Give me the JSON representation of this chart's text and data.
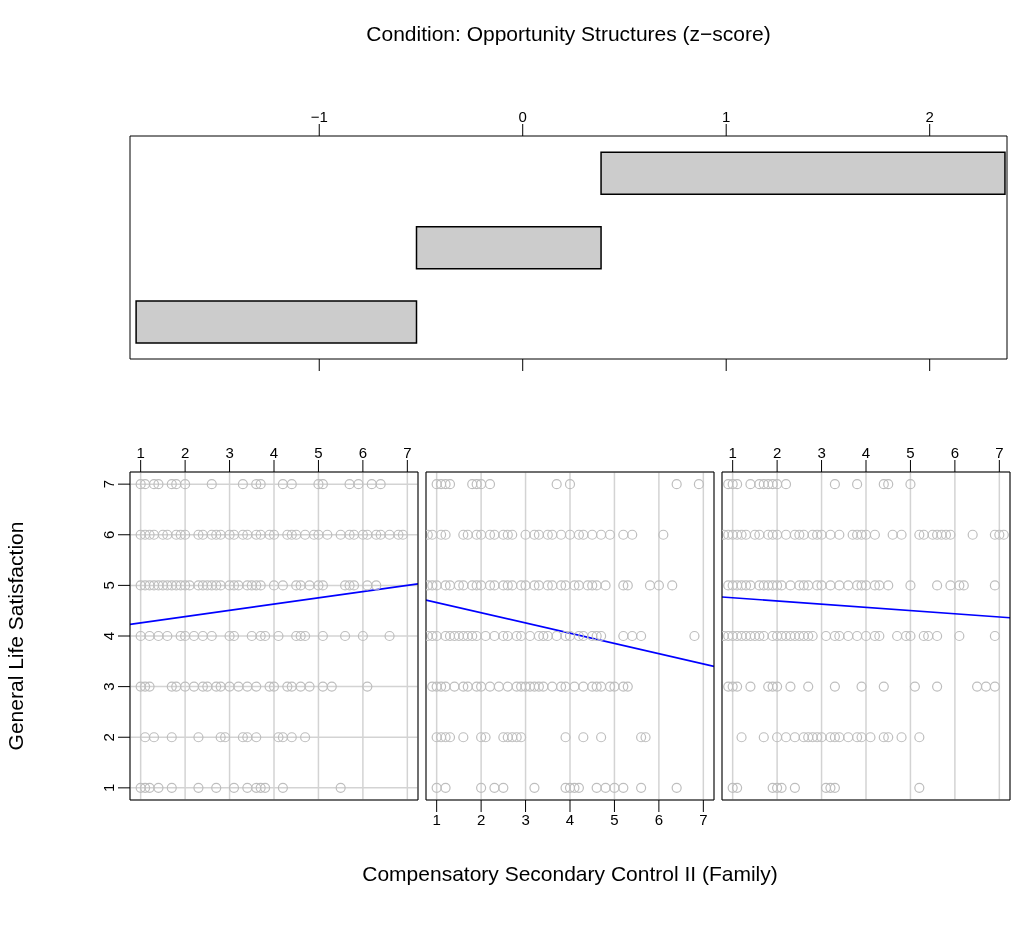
{
  "chart_data": [
    {
      "type": "bar",
      "orientation": "horizontal",
      "title": "Condition: Opportunity Structures (z−score)",
      "categories": [
        null,
        null,
        null
      ],
      "base": [
        0.385,
        -0.522,
        -1.9
      ],
      "values": [
        1.985,
        0.907,
        1.378
      ],
      "color": "#cccccc",
      "xlim": [
        -1.93,
        2.38
      ],
      "xticks": [
        -1,
        0,
        1,
        2
      ],
      "tick_labels": "x"
    },
    {
      "type": "scatter",
      "ylabel": "General Life Satisfaction",
      "xlim": [
        0.76,
        7.24
      ],
      "xticks": [
        1,
        2,
        3,
        4,
        5,
        6,
        7
      ],
      "ylim": [
        0.76,
        7.24
      ],
      "yticks": [
        1,
        2,
        3,
        4,
        5,
        6,
        7
      ],
      "grid": true,
      "marker": "circle",
      "series": [
        {
          "color": "#bebebe",
          "x": [
            1.0,
            1.1,
            1.3,
            1.4,
            1.7,
            1.8,
            2.0,
            2.6,
            3.3,
            3.6,
            3.7,
            4.2,
            4.4,
            5.0,
            5.1,
            5.7,
            5.9,
            6.2,
            6.4
          ],
          "values": [
            7,
            7,
            7,
            7,
            7,
            7,
            7,
            7,
            7,
            7,
            7,
            7,
            7,
            7,
            7,
            7,
            7,
            7,
            7
          ]
        },
        {
          "color": "#bebebe",
          "x": [
            1.0,
            1.1,
            1.2,
            1.3,
            1.5,
            1.6,
            1.8,
            1.9,
            2.0,
            2.3,
            2.4,
            2.6,
            2.7,
            2.8,
            3.0,
            3.1,
            3.3,
            3.4,
            3.6,
            3.7,
            3.9,
            4.0,
            4.3,
            4.4,
            4.5,
            4.7,
            4.9,
            5.0,
            5.2,
            5.5,
            5.7,
            5.8,
            6.0,
            6.1,
            6.3,
            6.4,
            6.6,
            6.8,
            6.9
          ],
          "values": [
            6,
            6,
            6,
            6,
            6,
            6,
            6,
            6,
            6,
            6,
            6,
            6,
            6,
            6,
            6,
            6,
            6,
            6,
            6,
            6,
            6,
            6,
            6,
            6,
            6,
            6,
            6,
            6,
            6,
            6,
            6,
            6,
            6,
            6,
            6,
            6,
            6,
            6,
            6
          ]
        },
        {
          "color": "#bebebe",
          "x": [
            1.0,
            1.1,
            1.2,
            1.3,
            1.4,
            1.5,
            1.6,
            1.7,
            1.8,
            1.9,
            2.0,
            2.1,
            2.3,
            2.4,
            2.5,
            2.6,
            2.7,
            2.8,
            3.0,
            3.1,
            3.2,
            3.4,
            3.5,
            3.6,
            3.7,
            4.0,
            4.2,
            4.5,
            4.6,
            4.8,
            5.0,
            5.1,
            5.6,
            5.7,
            5.8,
            6.1,
            6.3
          ],
          "values": [
            5,
            5,
            5,
            5,
            5,
            5,
            5,
            5,
            5,
            5,
            5,
            5,
            5,
            5,
            5,
            5,
            5,
            5,
            5,
            5,
            5,
            5,
            5,
            5,
            5,
            5,
            5,
            5,
            5,
            5,
            5,
            5,
            5,
            5,
            5,
            5,
            5
          ]
        },
        {
          "color": "#bebebe",
          "x": [
            1.0,
            1.2,
            1.4,
            1.6,
            1.9,
            2.0,
            2.2,
            2.4,
            2.6,
            3.0,
            3.1,
            3.5,
            3.7,
            3.8,
            4.1,
            4.5,
            4.6,
            4.7,
            5.1,
            5.6,
            6.0,
            6.6
          ],
          "values": [
            4,
            4,
            4,
            4,
            4,
            4,
            4,
            4,
            4,
            4,
            4,
            4,
            4,
            4,
            4,
            4,
            4,
            4,
            4,
            4,
            4,
            4
          ]
        },
        {
          "color": "#bebebe",
          "x": [
            1.0,
            1.1,
            1.2,
            1.7,
            1.8,
            2.0,
            2.2,
            2.4,
            2.5,
            2.7,
            2.8,
            3.0,
            3.2,
            3.4,
            3.6,
            3.9,
            4.0,
            4.3,
            4.4,
            4.6,
            4.8,
            5.1,
            5.3,
            6.1
          ],
          "values": [
            3,
            3,
            3,
            3,
            3,
            3,
            3,
            3,
            3,
            3,
            3,
            3,
            3,
            3,
            3,
            3,
            3,
            3,
            3,
            3,
            3,
            3,
            3,
            3
          ]
        },
        {
          "color": "#bebebe",
          "x": [
            1.1,
            1.3,
            1.7,
            2.3,
            2.8,
            2.9,
            3.3,
            3.4,
            3.6,
            4.1,
            4.2,
            4.4,
            4.7
          ],
          "values": [
            2,
            2,
            2,
            2,
            2,
            2,
            2,
            2,
            2,
            2,
            2,
            2,
            2
          ]
        },
        {
          "color": "#bebebe",
          "x": [
            1.0,
            1.1,
            1.2,
            1.4,
            1.7,
            2.3,
            2.7,
            3.1,
            3.4,
            3.6,
            3.7,
            3.8,
            4.2,
            5.5
          ],
          "values": [
            1,
            1,
            1,
            1,
            1,
            1,
            1,
            1,
            1,
            1,
            1,
            1,
            1,
            1
          ]
        },
        {
          "type": "line",
          "color": "#0000ff",
          "x": [
            0.76,
            7.24
          ],
          "values": [
            4.23,
            5.03
          ],
          "marker": "none"
        }
      ]
    },
    {
      "type": "scatter",
      "xlabel": "Compensatory Secondary Control II (Family)",
      "xlim": [
        0.76,
        7.24
      ],
      "xticks": [
        1,
        2,
        3,
        4,
        5,
        6,
        7
      ],
      "ylim": [
        0.76,
        7.24
      ],
      "yticks": [
        1,
        2,
        3,
        4,
        5,
        6,
        7
      ],
      "grid": true,
      "marker": "circle",
      "tick_labels": "x",
      "series": [
        {
          "color": "#bebebe",
          "x": [
            1.0,
            1.1,
            1.2,
            1.3,
            1.8,
            1.9,
            2.0,
            2.2,
            3.7,
            4.0,
            6.4,
            6.9
          ],
          "values": [
            7,
            7,
            7,
            7,
            7,
            7,
            7,
            7,
            7,
            7,
            7,
            7
          ]
        },
        {
          "color": "#bebebe",
          "x": [
            0.8,
            0.9,
            1.1,
            1.2,
            1.6,
            1.7,
            1.9,
            2.0,
            2.2,
            2.3,
            2.5,
            2.6,
            2.7,
            3.0,
            3.2,
            3.3,
            3.5,
            3.6,
            3.8,
            4.0,
            4.2,
            4.3,
            4.5,
            4.7,
            4.9,
            5.2,
            5.4,
            6.1
          ],
          "values": [
            6,
            6,
            6,
            6,
            6,
            6,
            6,
            6,
            6,
            6,
            6,
            6,
            6,
            6,
            6,
            6,
            6,
            6,
            6,
            6,
            6,
            6,
            6,
            6,
            6,
            6,
            6,
            6
          ]
        },
        {
          "color": "#bebebe",
          "x": [
            0.8,
            0.9,
            1.0,
            1.2,
            1.3,
            1.5,
            1.6,
            1.8,
            1.9,
            2.0,
            2.2,
            2.3,
            2.5,
            2.6,
            2.7,
            2.9,
            3.0,
            3.2,
            3.3,
            3.5,
            3.6,
            3.8,
            3.9,
            4.1,
            4.2,
            4.4,
            4.5,
            4.6,
            4.8,
            5.2,
            5.3,
            5.8,
            6.0,
            6.3
          ],
          "values": [
            5,
            5,
            5,
            5,
            5,
            5,
            5,
            5,
            5,
            5,
            5,
            5,
            5,
            5,
            5,
            5,
            5,
            5,
            5,
            5,
            5,
            5,
            5,
            5,
            5,
            5,
            5,
            5,
            5,
            5,
            5,
            5,
            5,
            5
          ]
        },
        {
          "color": "#bebebe",
          "x": [
            0.8,
            0.9,
            1.0,
            1.2,
            1.3,
            1.4,
            1.5,
            1.6,
            1.7,
            1.8,
            1.9,
            2.1,
            2.3,
            2.5,
            2.6,
            2.8,
            2.9,
            3.1,
            3.3,
            3.4,
            3.5,
            3.7,
            3.9,
            4.0,
            4.2,
            4.3,
            4.5,
            4.6,
            4.7,
            5.2,
            5.4,
            5.6,
            6.8
          ],
          "values": [
            4,
            4,
            4,
            4,
            4,
            4,
            4,
            4,
            4,
            4,
            4,
            4,
            4,
            4,
            4,
            4,
            4,
            4,
            4,
            4,
            4,
            4,
            4,
            4,
            4,
            4,
            4,
            4,
            4,
            4,
            4,
            4,
            4
          ]
        },
        {
          "color": "#bebebe",
          "x": [
            0.9,
            1.0,
            1.1,
            1.2,
            1.4,
            1.6,
            1.7,
            1.9,
            2.0,
            2.2,
            2.4,
            2.6,
            2.8,
            2.9,
            3.0,
            3.1,
            3.2,
            3.3,
            3.4,
            3.6,
            3.8,
            3.9,
            4.1,
            4.3,
            4.5,
            4.6,
            4.7,
            4.9,
            5.0,
            5.2,
            5.3
          ],
          "values": [
            3,
            3,
            3,
            3,
            3,
            3,
            3,
            3,
            3,
            3,
            3,
            3,
            3,
            3,
            3,
            3,
            3,
            3,
            3,
            3,
            3,
            3,
            3,
            3,
            3,
            3,
            3,
            3,
            3,
            3,
            3
          ]
        },
        {
          "color": "#bebebe",
          "x": [
            1.0,
            1.1,
            1.2,
            1.3,
            1.6,
            2.0,
            2.1,
            2.5,
            2.6,
            2.7,
            2.8,
            2.9,
            3.9,
            4.3,
            4.7,
            5.6,
            5.7
          ],
          "values": [
            2,
            2,
            2,
            2,
            2,
            2,
            2,
            2,
            2,
            2,
            2,
            2,
            2,
            2,
            2,
            2,
            2
          ]
        },
        {
          "color": "#bebebe",
          "x": [
            1.0,
            1.2,
            2.0,
            2.3,
            2.5,
            3.2,
            3.9,
            4.0,
            4.1,
            4.2,
            4.6,
            4.8,
            5.0,
            5.2,
            5.6,
            6.4
          ],
          "values": [
            1,
            1,
            1,
            1,
            1,
            1,
            1,
            1,
            1,
            1,
            1,
            1,
            1,
            1,
            1,
            1
          ]
        },
        {
          "type": "line",
          "color": "#0000ff",
          "x": [
            0.76,
            7.24
          ],
          "values": [
            4.71,
            3.4
          ],
          "marker": "none"
        }
      ]
    },
    {
      "type": "scatter",
      "xlim": [
        0.76,
        7.24
      ],
      "xticks": [
        1,
        2,
        3,
        4,
        5,
        6,
        7
      ],
      "ylim": [
        0.76,
        7.24
      ],
      "yticks": [
        1,
        2,
        3,
        4,
        5,
        6,
        7
      ],
      "grid": true,
      "marker": "circle",
      "tick_labels": "x",
      "series": [
        {
          "color": "#bebebe",
          "x": [
            0.9,
            1.0,
            1.1,
            1.4,
            1.6,
            1.7,
            1.8,
            1.9,
            2.0,
            2.2,
            3.3,
            3.8,
            4.4,
            4.5,
            5.0
          ],
          "values": [
            7,
            7,
            7,
            7,
            7,
            7,
            7,
            7,
            7,
            7,
            7,
            7,
            7,
            7,
            7
          ]
        },
        {
          "color": "#bebebe",
          "x": [
            0.8,
            0.9,
            1.0,
            1.1,
            1.2,
            1.3,
            1.5,
            1.6,
            1.8,
            1.9,
            2.0,
            2.2,
            2.4,
            2.5,
            2.6,
            2.8,
            2.9,
            3.0,
            3.2,
            3.4,
            3.7,
            3.8,
            3.9,
            4.0,
            4.2,
            4.6,
            4.8,
            5.2,
            5.3,
            5.5,
            5.6,
            5.7,
            5.8,
            5.9,
            6.4,
            6.9,
            7.0,
            7.1
          ],
          "values": [
            6,
            6,
            6,
            6,
            6,
            6,
            6,
            6,
            6,
            6,
            6,
            6,
            6,
            6,
            6,
            6,
            6,
            6,
            6,
            6,
            6,
            6,
            6,
            6,
            6,
            6,
            6,
            6,
            6,
            6,
            6,
            6,
            6,
            6,
            6,
            6,
            6,
            6
          ]
        },
        {
          "color": "#bebebe",
          "x": [
            0.9,
            1.0,
            1.1,
            1.2,
            1.3,
            1.4,
            1.6,
            1.7,
            1.8,
            1.9,
            2.0,
            2.1,
            2.3,
            2.5,
            2.6,
            2.7,
            2.9,
            3.0,
            3.2,
            3.4,
            3.6,
            3.8,
            3.9,
            4.0,
            4.2,
            4.3,
            4.5,
            5.0,
            5.6,
            5.9,
            6.1,
            6.2,
            6.9
          ],
          "values": [
            5,
            5,
            5,
            5,
            5,
            5,
            5,
            5,
            5,
            5,
            5,
            5,
            5,
            5,
            5,
            5,
            5,
            5,
            5,
            5,
            5,
            5,
            5,
            5,
            5,
            5,
            5,
            5,
            5,
            5,
            5,
            5,
            5
          ]
        },
        {
          "color": "#bebebe",
          "x": [
            0.8,
            0.9,
            1.0,
            1.1,
            1.2,
            1.3,
            1.4,
            1.5,
            1.6,
            1.7,
            1.9,
            2.0,
            2.1,
            2.2,
            2.3,
            2.4,
            2.5,
            2.6,
            2.7,
            2.8,
            3.1,
            3.3,
            3.4,
            3.6,
            3.8,
            4.0,
            4.2,
            4.3,
            4.7,
            4.9,
            5.0,
            5.3,
            5.4,
            5.6,
            6.1,
            6.9
          ],
          "values": [
            4,
            4,
            4,
            4,
            4,
            4,
            4,
            4,
            4,
            4,
            4,
            4,
            4,
            4,
            4,
            4,
            4,
            4,
            4,
            4,
            4,
            4,
            4,
            4,
            4,
            4,
            4,
            4,
            4,
            4,
            4,
            4,
            4,
            4,
            4,
            4
          ]
        },
        {
          "color": "#bebebe",
          "x": [
            0.9,
            1.0,
            1.1,
            1.4,
            1.8,
            1.9,
            2.0,
            2.3,
            2.7,
            3.3,
            3.9,
            4.4,
            5.1,
            5.6,
            6.5,
            6.7,
            6.9
          ],
          "values": [
            3,
            3,
            3,
            3,
            3,
            3,
            3,
            3,
            3,
            3,
            3,
            3,
            3,
            3,
            3,
            3,
            3
          ]
        },
        {
          "color": "#bebebe",
          "x": [
            1.2,
            1.7,
            2.0,
            2.2,
            2.4,
            2.6,
            2.7,
            2.8,
            2.9,
            3.0,
            3.2,
            3.3,
            3.4,
            3.6,
            3.8,
            3.9,
            4.1,
            4.4,
            4.5,
            4.8,
            5.2
          ],
          "values": [
            2,
            2,
            2,
            2,
            2,
            2,
            2,
            2,
            2,
            2,
            2,
            2,
            2,
            2,
            2,
            2,
            2,
            2,
            2,
            2,
            2
          ]
        },
        {
          "color": "#bebebe",
          "x": [
            1.0,
            1.1,
            1.9,
            2.0,
            2.1,
            2.4,
            3.1,
            3.2,
            3.3,
            5.2
          ],
          "values": [
            1,
            1,
            1,
            1,
            1,
            1,
            1,
            1,
            1,
            1
          ]
        },
        {
          "type": "line",
          "color": "#0000ff",
          "x": [
            0.76,
            7.24
          ],
          "values": [
            4.77,
            4.36
          ],
          "marker": "none"
        }
      ]
    }
  ]
}
